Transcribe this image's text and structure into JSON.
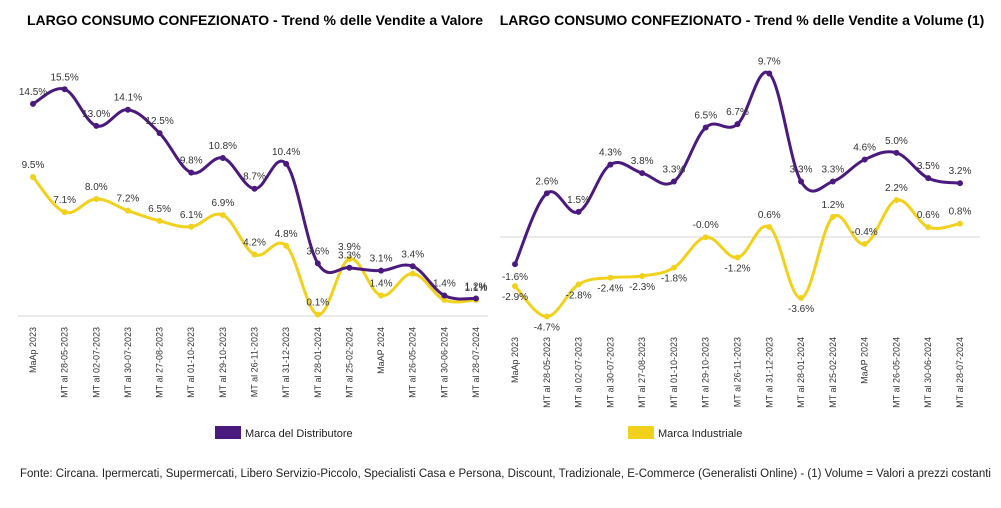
{
  "source_note": "Fonte: Circana. Ipermercati, Supermercati, Libero Servizio-Piccolo, Specialisti Casa e Persona, Discount, Tradizionale, E-Commerce (Generalisti Online) - (1) Volume = Valori a prezzi costanti",
  "colors": {
    "distributore": "#4b1a7f",
    "industriale": "#f2d11c"
  },
  "chart_data": [
    {
      "type": "line",
      "title": "LARGO CONSUMO CONFEZIONATO - Trend % delle Vendite a Valore",
      "categories": [
        "MaAp 2023",
        "MT al 28-05-2023",
        "MT al 02-07-2023",
        "MT al 30-07-2023",
        "MT al 27-08-2023",
        "MT al 01-10-2023",
        "MT al 29-10-2023",
        "MT al 26-11-2023",
        "MT al 31-12-2023",
        "MT al 28-01-2024",
        "MT al 25-02-2024",
        "MaAP 2024",
        "MT al 26-05-2024",
        "MT al 30-06-2024",
        "MT al 28-07-2024"
      ],
      "ylim": [
        0,
        17.5
      ],
      "legend_placement": "bottom",
      "series": [
        {
          "name": "Marca del Distributore",
          "color": "#4b1a7f",
          "values": [
            14.5,
            15.5,
            13.0,
            14.1,
            12.5,
            9.8,
            10.8,
            8.7,
            10.4,
            3.6,
            3.3,
            3.1,
            3.4,
            1.4,
            1.2
          ],
          "labels": [
            "14.5%",
            "15.5%",
            "13.0%",
            "14.1%",
            "12.5%",
            "9.8%",
            "10.8%",
            "8.7%",
            "10.4%",
            "3.6%",
            "3.3%",
            "3.1%",
            "3.4%",
            "1.4%",
            "1.2%"
          ]
        },
        {
          "name": "Marca Industriale",
          "color": "#f2d11c",
          "values": [
            9.5,
            7.1,
            8.0,
            7.2,
            6.5,
            6.1,
            6.9,
            4.2,
            4.8,
            0.1,
            3.9,
            1.4,
            2.9,
            1.1,
            1.1
          ],
          "labels": [
            "9.5%",
            "7.1%",
            "8.0%",
            "7.2%",
            "6.5%",
            "6.1%",
            "6.9%",
            "4.2%",
            "4.8%",
            "0.1%",
            "3.9%",
            "1.4%",
            "",
            "",
            "1.1%"
          ]
        }
      ]
    },
    {
      "type": "line",
      "title": "LARGO CONSUMO CONFEZIONATO - Trend % delle Vendite a Volume (1)",
      "categories": [
        "MaAp 2023",
        "MT al 28-05-2023",
        "MT al 02-07-2023",
        "MT al 30-07-2023",
        "MT al 27-08-2023",
        "MT al 01-10-2023",
        "MT al 29-10-2023",
        "MT al 26-11-2023",
        "MT al 31-12-2023",
        "MT al 28-01-2024",
        "MT al 25-02-2024",
        "MaAP 2024",
        "MT al 26-05-2024",
        "MT al 30-06-2024",
        "MT al 28-07-2024"
      ],
      "ylim": [
        -5.5,
        10.5
      ],
      "zero_line": true,
      "legend_placement": "bottom",
      "series": [
        {
          "name": "Marca del Distributore",
          "color": "#4b1a7f",
          "values": [
            -1.6,
            2.6,
            1.5,
            4.3,
            3.8,
            3.3,
            6.5,
            6.7,
            9.7,
            3.3,
            3.3,
            4.6,
            5.0,
            3.5,
            3.2
          ],
          "labels": [
            "-1.6%",
            "2.6%",
            "1.5%",
            "4.3%",
            "3.8%",
            "3.3%",
            "6.5%",
            "6.7%",
            "9.7%",
            "3.3%",
            "3.3%",
            "4.6%",
            "5.0%",
            "3.5%",
            "3.2%"
          ]
        },
        {
          "name": "Marca Industriale",
          "color": "#f2d11c",
          "values": [
            -2.9,
            -4.7,
            -2.8,
            -2.4,
            -2.3,
            -1.8,
            -0.0,
            -1.2,
            0.6,
            -3.6,
            1.2,
            -0.4,
            2.2,
            0.6,
            0.8
          ],
          "labels": [
            "-2.9%",
            "-4.7%",
            "-2.8%",
            "-2.4%",
            "-2.3%",
            "-1.8%",
            "-0.0%",
            "-1.2%",
            "0.6%",
            "-3.6%",
            "1.2%",
            "-0.4%",
            "2.2%",
            "0.6%",
            "0.8%"
          ]
        }
      ]
    }
  ]
}
